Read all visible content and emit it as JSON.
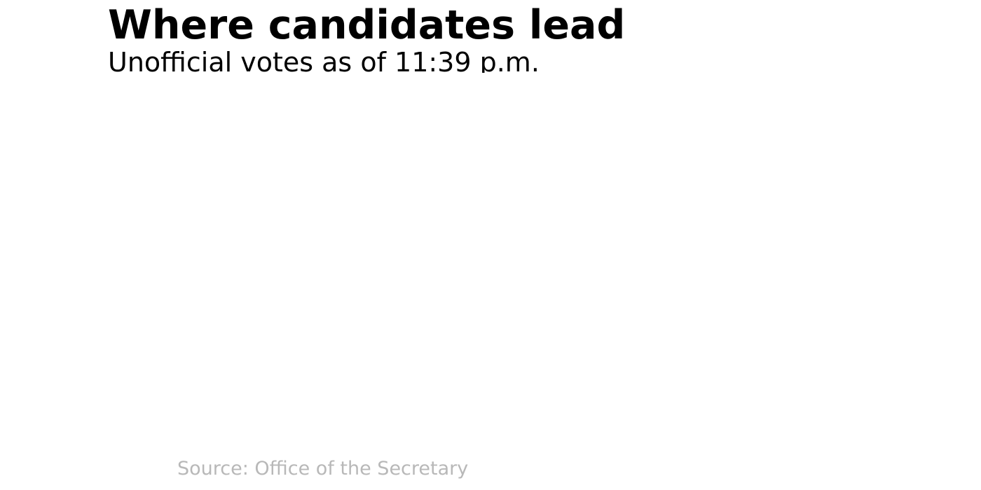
{
  "header": {
    "title": "Where candidates lead",
    "subtitle": "Unofficial votes as of 11:39 p.m."
  },
  "footer": {
    "source": "Source: Office of the Secretary"
  },
  "colors": {
    "title": "#000000",
    "subtitle": "#000000",
    "source": "#b8b8b8",
    "background": "#ffffff"
  }
}
